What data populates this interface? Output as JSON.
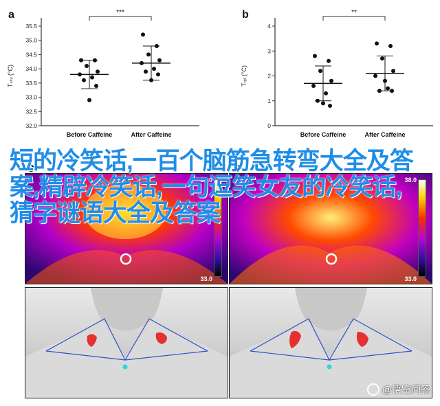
{
  "chart_data": [
    {
      "type": "scatter",
      "panel_label": "a",
      "categories": [
        "Before Caffeine",
        "After Caffeine"
      ],
      "ylabel": "Tₛₜᵥ (°C)",
      "ylim": [
        32.0,
        35.5
      ],
      "yticks": [
        "32.0",
        "32.5",
        "33.0",
        "33.5",
        "34.0",
        "34.5",
        "35.0",
        "35.5"
      ],
      "significance": "***",
      "series": [
        {
          "values": [
            34.3,
            34.3,
            34.1,
            33.9,
            33.8,
            33.7,
            33.6,
            33.4,
            32.9
          ],
          "mean": 33.8,
          "sd": 0.5
        },
        {
          "values": [
            35.2,
            34.8,
            34.5,
            34.3,
            34.2,
            34.0,
            33.9,
            33.8,
            33.6
          ],
          "mean": 34.2,
          "sd": 0.6
        }
      ]
    },
    {
      "type": "scatter",
      "panel_label": "b",
      "categories": [
        "Before Caffeine",
        "After Caffeine"
      ],
      "ylabel": "Tᵣₑₗ (°C)",
      "ylim": [
        0,
        4
      ],
      "yticks": [
        "0",
        "1",
        "2",
        "3",
        "4"
      ],
      "significance": "**",
      "series": [
        {
          "values": [
            2.8,
            2.6,
            2.2,
            1.8,
            1.6,
            1.3,
            1.0,
            0.8,
            0.9
          ],
          "mean": 1.7,
          "sd": 0.7
        },
        {
          "values": [
            3.3,
            3.2,
            2.7,
            2.2,
            2.0,
            1.5,
            1.4,
            1.4,
            1.8
          ],
          "mean": 2.1,
          "sd": 0.7
        }
      ]
    }
  ],
  "panels": {
    "c_label": "c",
    "d_label": "c",
    "scale_max": "38.0",
    "scale_min": "33.0"
  },
  "overlay": {
    "title": "短的冷笑话,一百个脑筋急转弯大全及答案,精辟冷笑话,一句逗笑女友的冷笑话,猜字谜语大全及答案"
  },
  "watermark": {
    "text": "@悟空问答"
  },
  "colors": {
    "title_blue": "#1f8de8",
    "sketch_line": "#3050c8",
    "marker_cyan": "#2ad8e0",
    "patch_red": "#e43030"
  }
}
